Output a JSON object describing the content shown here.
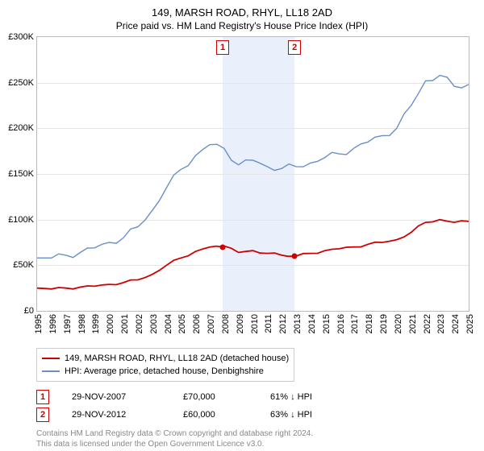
{
  "title": "149, MARSH ROAD, RHYL, LL18 2AD",
  "subtitle": "Price paid vs. HM Land Registry's House Price Index (HPI)",
  "chart": {
    "type": "line",
    "background_color": "#ffffff",
    "grid_color": "#e5e5e5",
    "border_color": "#bbbbbb",
    "y": {
      "min": 0,
      "max": 300000,
      "step": 50000,
      "prefix": "£",
      "suffix_k": "K"
    },
    "x": {
      "min": 1995,
      "max": 2025,
      "step": 1
    },
    "shaded": {
      "from": 2007.9,
      "to": 2012.9,
      "color": "#eaf0fb"
    },
    "markers": [
      {
        "num": "1",
        "year": 2007.9
      },
      {
        "num": "2",
        "year": 2012.9
      }
    ],
    "sale_points": [
      {
        "year": 2007.9,
        "value": 70000
      },
      {
        "year": 2012.9,
        "value": 60000
      }
    ],
    "series": [
      {
        "id": "property",
        "label": "149, MARSH ROAD, RHYL, LL18 2AD (detached house)",
        "color": "#cc0000",
        "width": 1.8,
        "data": [
          [
            1995,
            25000
          ],
          [
            1996,
            24000
          ],
          [
            1997,
            25000
          ],
          [
            1998,
            26000
          ],
          [
            1999,
            27000
          ],
          [
            2000,
            29000
          ],
          [
            2001,
            31000
          ],
          [
            2002,
            34000
          ],
          [
            2003,
            40000
          ],
          [
            2004,
            50000
          ],
          [
            2005,
            58000
          ],
          [
            2006,
            65000
          ],
          [
            2007,
            70000
          ],
          [
            2007.9,
            70000
          ],
          [
            2008,
            71000
          ],
          [
            2009,
            64000
          ],
          [
            2010,
            66000
          ],
          [
            2011,
            63000
          ],
          [
            2012,
            61000
          ],
          [
            2012.9,
            60000
          ],
          [
            2013,
            60000
          ],
          [
            2014,
            63000
          ],
          [
            2015,
            66000
          ],
          [
            2016,
            68000
          ],
          [
            2017,
            70000
          ],
          [
            2018,
            73000
          ],
          [
            2019,
            75000
          ],
          [
            2020,
            78000
          ],
          [
            2021,
            86000
          ],
          [
            2022,
            97000
          ],
          [
            2023,
            100000
          ],
          [
            2024,
            97000
          ],
          [
            2025,
            98000
          ]
        ]
      },
      {
        "id": "hpi",
        "label": "HPI: Average price, detached house, Denbighshire",
        "color": "#6a8fc9",
        "width": 1.4,
        "data": [
          [
            1995,
            58000
          ],
          [
            1996,
            58000
          ],
          [
            1997,
            61000
          ],
          [
            1998,
            64000
          ],
          [
            1999,
            69000
          ],
          [
            2000,
            75000
          ],
          [
            2001,
            80000
          ],
          [
            2002,
            92000
          ],
          [
            2003,
            110000
          ],
          [
            2004,
            135000
          ],
          [
            2005,
            155000
          ],
          [
            2006,
            170000
          ],
          [
            2007,
            182000
          ],
          [
            2008,
            178000
          ],
          [
            2009,
            160000
          ],
          [
            2010,
            165000
          ],
          [
            2011,
            158000
          ],
          [
            2012,
            156000
          ],
          [
            2013,
            158000
          ],
          [
            2014,
            162000
          ],
          [
            2015,
            168000
          ],
          [
            2016,
            172000
          ],
          [
            2017,
            178000
          ],
          [
            2018,
            185000
          ],
          [
            2019,
            192000
          ],
          [
            2020,
            200000
          ],
          [
            2021,
            225000
          ],
          [
            2022,
            252000
          ],
          [
            2023,
            258000
          ],
          [
            2024,
            246000
          ],
          [
            2025,
            248000
          ]
        ]
      }
    ]
  },
  "legend": {
    "rows": [
      {
        "color": "#cc0000",
        "label": "149, MARSH ROAD, RHYL, LL18 2AD (detached house)"
      },
      {
        "color": "#6a8fc9",
        "label": "HPI: Average price, detached house, Denbighshire"
      }
    ]
  },
  "sales": [
    {
      "num": "1",
      "date": "29-NOV-2007",
      "price": "£70,000",
      "diff": "61% ↓ HPI"
    },
    {
      "num": "2",
      "date": "29-NOV-2012",
      "price": "£60,000",
      "diff": "63% ↓ HPI"
    }
  ],
  "copyright": {
    "line1": "Contains HM Land Registry data © Crown copyright and database right 2024.",
    "line2": "This data is licensed under the Open Government Licence v3.0."
  }
}
